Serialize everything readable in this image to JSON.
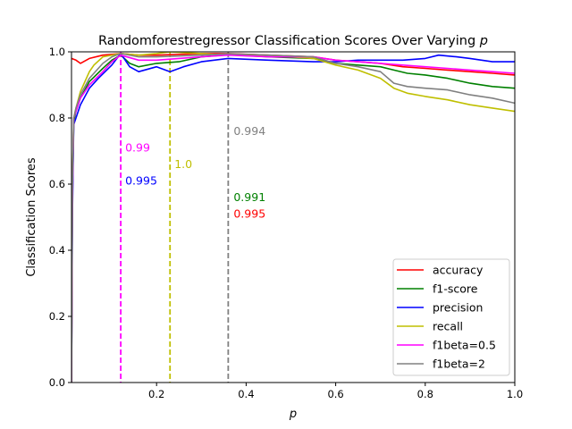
{
  "chart_data": {
    "type": "line",
    "title": "Randomforestregressor Classification Scores Over Varying ",
    "title_var": "p",
    "xlabel": "p",
    "ylabel": "Classification Scores",
    "xlim": [
      0.01,
      1.0
    ],
    "ylim": [
      0.0,
      1.0
    ],
    "xticks": [
      0.2,
      0.4,
      0.6,
      0.8,
      1.0
    ],
    "xtick_labels": [
      "0.2",
      "0.4",
      "0.6",
      "0.8",
      "1.0"
    ],
    "yticks": [
      0.0,
      0.2,
      0.4,
      0.6,
      0.8,
      1.0
    ],
    "ytick_labels": [
      "0.0",
      "0.2",
      "0.4",
      "0.6",
      "0.8",
      "1.0"
    ],
    "grid": false,
    "legend_position": "lower-right",
    "series": [
      {
        "name": "accuracy",
        "color": "#ff0000",
        "x": [
          0.01,
          0.02,
          0.03,
          0.05,
          0.08,
          0.12,
          0.16,
          0.2,
          0.3,
          0.36,
          0.45,
          0.55,
          0.6,
          0.65,
          0.7,
          0.75,
          0.8,
          0.85,
          0.9,
          0.95,
          1.0
        ],
        "y": [
          0.98,
          0.975,
          0.965,
          0.98,
          0.99,
          0.995,
          0.99,
          0.99,
          0.995,
          0.995,
          0.99,
          0.985,
          0.975,
          0.97,
          0.965,
          0.955,
          0.95,
          0.945,
          0.94,
          0.935,
          0.93
        ]
      },
      {
        "name": "f1-score",
        "color": "#008000",
        "x": [
          0.01,
          0.012,
          0.015,
          0.02,
          0.03,
          0.05,
          0.08,
          0.1,
          0.12,
          0.14,
          0.16,
          0.2,
          0.25,
          0.3,
          0.36,
          0.45,
          0.55,
          0.6,
          0.65,
          0.7,
          0.73,
          0.76,
          0.8,
          0.85,
          0.9,
          0.95,
          1.0
        ],
        "y": [
          0.0,
          0.55,
          0.79,
          0.82,
          0.86,
          0.91,
          0.95,
          0.975,
          0.99,
          0.965,
          0.955,
          0.965,
          0.97,
          0.985,
          0.991,
          0.985,
          0.98,
          0.965,
          0.96,
          0.955,
          0.945,
          0.935,
          0.93,
          0.92,
          0.905,
          0.895,
          0.89
        ]
      },
      {
        "name": "precision",
        "color": "#0000ff",
        "x": [
          0.01,
          0.012,
          0.015,
          0.02,
          0.03,
          0.05,
          0.07,
          0.1,
          0.12,
          0.14,
          0.16,
          0.2,
          0.23,
          0.26,
          0.3,
          0.36,
          0.45,
          0.55,
          0.6,
          0.65,
          0.7,
          0.75,
          0.8,
          0.83,
          0.87,
          0.9,
          0.95,
          1.0
        ],
        "y": [
          0.0,
          0.5,
          0.78,
          0.8,
          0.84,
          0.89,
          0.92,
          0.96,
          0.995,
          0.955,
          0.94,
          0.955,
          0.94,
          0.955,
          0.97,
          0.98,
          0.975,
          0.97,
          0.97,
          0.975,
          0.975,
          0.975,
          0.98,
          0.99,
          0.985,
          0.98,
          0.97,
          0.97
        ]
      },
      {
        "name": "recall",
        "color": "#bfbf00",
        "x": [
          0.01,
          0.012,
          0.015,
          0.02,
          0.03,
          0.04,
          0.05,
          0.06,
          0.08,
          0.1,
          0.12,
          0.16,
          0.2,
          0.23,
          0.3,
          0.36,
          0.45,
          0.55,
          0.6,
          0.65,
          0.7,
          0.73,
          0.76,
          0.8,
          0.85,
          0.9,
          0.95,
          1.0
        ],
        "y": [
          0.0,
          0.6,
          0.8,
          0.83,
          0.88,
          0.91,
          0.94,
          0.96,
          0.985,
          0.99,
          0.995,
          0.99,
          0.995,
          1.0,
          0.995,
          0.99,
          0.99,
          0.98,
          0.96,
          0.945,
          0.92,
          0.89,
          0.875,
          0.865,
          0.855,
          0.84,
          0.83,
          0.82
        ]
      },
      {
        "name": "f1beta=0.5",
        "color": "#ff00ff",
        "x": [
          0.01,
          0.012,
          0.015,
          0.02,
          0.03,
          0.05,
          0.08,
          0.1,
          0.12,
          0.16,
          0.2,
          0.3,
          0.36,
          0.45,
          0.55,
          0.6,
          0.65,
          0.7,
          0.75,
          0.8,
          0.85,
          0.9,
          0.95,
          1.0
        ],
        "y": [
          0.0,
          0.55,
          0.8,
          0.82,
          0.86,
          0.9,
          0.94,
          0.97,
          0.99,
          0.975,
          0.975,
          0.985,
          0.99,
          0.985,
          0.985,
          0.975,
          0.97,
          0.965,
          0.96,
          0.955,
          0.95,
          0.945,
          0.94,
          0.935
        ]
      },
      {
        "name": "f1beta=2",
        "color": "#808080",
        "x": [
          0.01,
          0.012,
          0.015,
          0.02,
          0.03,
          0.05,
          0.08,
          0.1,
          0.12,
          0.16,
          0.2,
          0.3,
          0.36,
          0.45,
          0.55,
          0.6,
          0.65,
          0.7,
          0.73,
          0.76,
          0.8,
          0.85,
          0.9,
          0.95,
          1.0
        ],
        "y": [
          0.0,
          0.58,
          0.8,
          0.83,
          0.87,
          0.92,
          0.965,
          0.985,
          0.995,
          0.985,
          0.985,
          0.99,
          0.994,
          0.99,
          0.985,
          0.965,
          0.955,
          0.94,
          0.905,
          0.895,
          0.89,
          0.885,
          0.87,
          0.86,
          0.845
        ]
      }
    ],
    "vlines": [
      {
        "x": 0.12,
        "color": "#ff00ff"
      },
      {
        "x": 0.23,
        "color": "#bfbf00"
      },
      {
        "x": 0.36,
        "color": "#808080"
      }
    ],
    "annotations": [
      {
        "text": "0.99",
        "x": 0.13,
        "y": 0.71,
        "color": "#ff00ff"
      },
      {
        "text": "0.995",
        "x": 0.13,
        "y": 0.61,
        "color": "#0000ff"
      },
      {
        "text": "1.0",
        "x": 0.24,
        "y": 0.66,
        "color": "#bfbf00"
      },
      {
        "text": "0.994",
        "x": 0.372,
        "y": 0.76,
        "color": "#808080"
      },
      {
        "text": "0.991",
        "x": 0.372,
        "y": 0.56,
        "color": "#008000"
      },
      {
        "text": "0.995",
        "x": 0.372,
        "y": 0.51,
        "color": "#ff0000"
      }
    ]
  }
}
